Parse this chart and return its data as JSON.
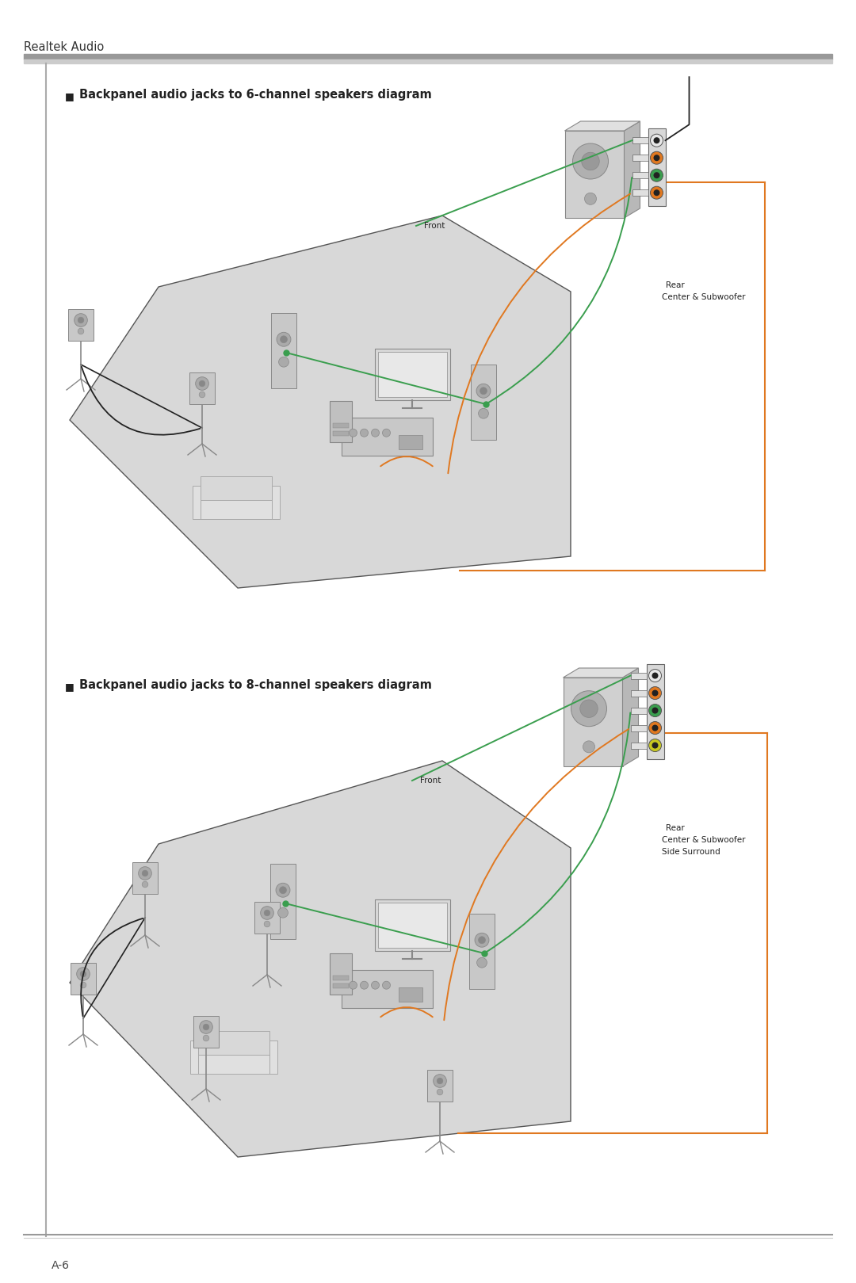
{
  "page_bg": "#ffffff",
  "content_bg": "#f8f8f8",
  "header_text": "Realtek Audio",
  "header_color": "#333333",
  "header_fontsize": 10.5,
  "border_bar_color": "#888888",
  "footer_text": "A-6",
  "footer_color": "#444444",
  "footer_fontsize": 10,
  "diagram1_title": "Backpanel audio jacks to 6-channel speakers diagram",
  "diagram2_title": "Backpanel audio jacks to 8-channel speakers diagram",
  "title_fontsize": 10.5,
  "green_color": "#3a9e4e",
  "orange_color": "#e07820",
  "black_color": "#222222",
  "gray_floor": "#d8d8d8",
  "gray_spk": "#b8b8b8",
  "gray_spk_edge": "#888888",
  "gray_box": "#cccccc",
  "gray_panel": "#d5d5d5",
  "label_front": "Front",
  "label_rear": "Rear",
  "label_center_sub": "Center & Subwoofer",
  "label_side_surround": "Side Surround",
  "label_fontsize": 7.5,
  "white_color": "#ffffff"
}
